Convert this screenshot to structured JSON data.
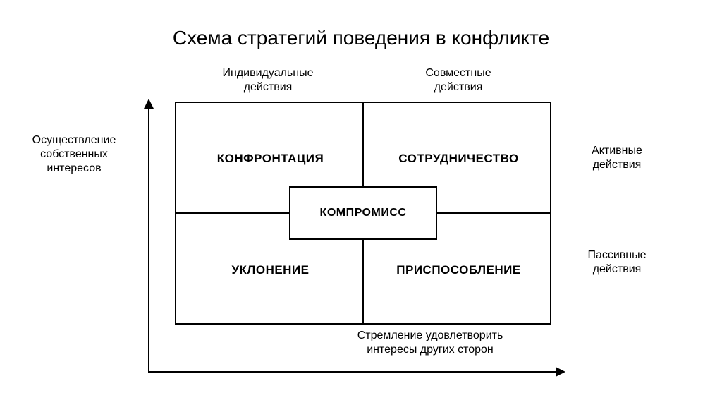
{
  "title": "Схема стратегий поведения в конфликте",
  "diagram": {
    "type": "quadrant",
    "background_color": "#ffffff",
    "border_color": "#000000",
    "border_width": 2,
    "title_fontsize": 28,
    "label_fontsize": 16,
    "cell_fontsize": 17,
    "cell_font_weight": 700,
    "center_fontsize": 16,
    "top_labels": {
      "left": "Индивидуальные\nдействия",
      "right": "Совместные\nдействия"
    },
    "side_labels": {
      "left": "Осуществление\nсобственных\nинтересов",
      "right_top": "Активные\nдействия",
      "right_bottom": "Пассивные\nдействия"
    },
    "cells": {
      "top_left": "КОНФРОНТАЦИЯ",
      "top_right": "СОТРУДНИЧЕСТВО",
      "bottom_left": "УКЛОНЕНИЕ",
      "bottom_right": "ПРИСПОСОБЛЕНИЕ"
    },
    "center_label": "КОМПРОМИСС",
    "x_axis_label": "Стремление удовлетворить\nинтересы других сторон",
    "axes": {
      "y": {
        "direction": "up",
        "arrow": true
      },
      "x": {
        "direction": "right",
        "arrow": true
      }
    },
    "grid_size": {
      "cols": 2,
      "rows": 2
    }
  }
}
